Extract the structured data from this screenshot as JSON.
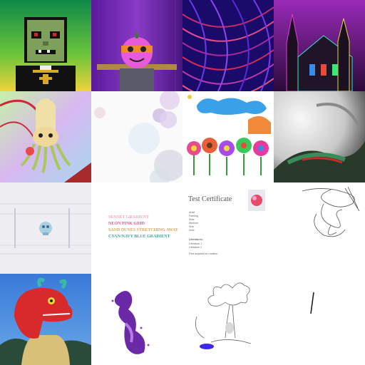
{
  "tiles": [
    {
      "name": "pixel-zombie-priest"
    },
    {
      "name": "pumpkin-scarecrow"
    },
    {
      "name": "purple-red-streaks"
    },
    {
      "name": "neon-gothic-cathedral"
    },
    {
      "name": "pastel-squid-creature"
    },
    {
      "name": "pastel-circles"
    },
    {
      "name": "childlike-flower-drawing"
    },
    {
      "name": "abstract-swirl-painting"
    },
    {
      "name": "glitch-skull"
    },
    {
      "name": "text-lines",
      "lines": [
        "SUNSET GRADIENT",
        "NEON PINK GRID",
        "SAND DUNES STRETCHING AWAY",
        "CYAN/NAVY BLUE GRADIENT"
      ],
      "colors": [
        "#f0a8c4",
        "#e8509a",
        "#d4a45a",
        "#3aa8a0"
      ]
    },
    {
      "name": "test-certificate",
      "title": "Test Certificate",
      "fields": [
        "Artist",
        "Painting",
        "Note",
        "Medium",
        "Size",
        "Note"
      ],
      "section": "Literatures:",
      "refs": [
        "Literature 1",
        "Literature 2"
      ],
      "footer": "First acquired at Location"
    },
    {
      "name": "pencil-scribble"
    },
    {
      "name": "red-dragon-portrait"
    },
    {
      "name": "purple-particle-cloud"
    },
    {
      "name": "sketch-tree"
    },
    {
      "name": "single-line-mark"
    }
  ]
}
